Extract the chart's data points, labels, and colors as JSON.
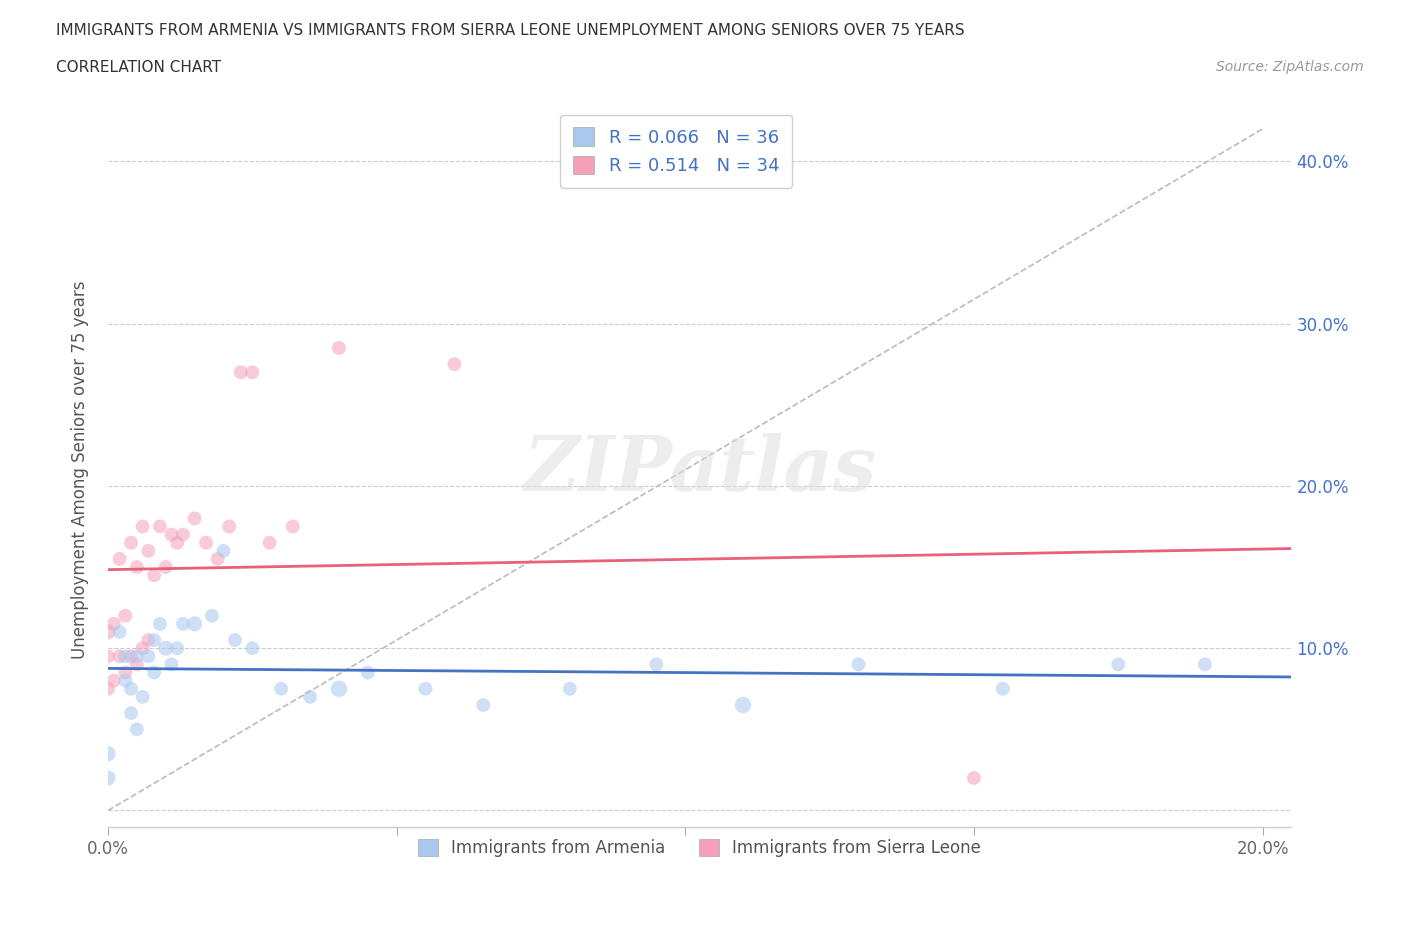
{
  "title_line1": "IMMIGRANTS FROM ARMENIA VS IMMIGRANTS FROM SIERRA LEONE UNEMPLOYMENT AMONG SENIORS OVER 75 YEARS",
  "title_line2": "CORRELATION CHART",
  "source": "Source: ZipAtlas.com",
  "ylabel": "Unemployment Among Seniors over 75 years",
  "xlim": [
    0.0,
    0.205
  ],
  "ylim": [
    -0.01,
    0.43
  ],
  "xticks": [
    0.0,
    0.05,
    0.1,
    0.15,
    0.2
  ],
  "yticks": [
    0.0,
    0.1,
    0.2,
    0.3,
    0.4
  ],
  "xticklabels": [
    "0.0%",
    "",
    "",
    "",
    "20.0%"
  ],
  "yticklabels_left": [
    "",
    "",
    "",
    "",
    ""
  ],
  "yticklabels_right": [
    "",
    "10.0%",
    "20.0%",
    "30.0%",
    "40.0%"
  ],
  "armenia_color": "#A8C8F0",
  "sierra_leone_color": "#F5A0B8",
  "armenia_line_color": "#4472C4",
  "sierra_leone_line_color": "#E8607A",
  "armenia_R": 0.066,
  "armenia_N": 36,
  "sierra_leone_R": 0.514,
  "sierra_leone_N": 34,
  "legend_color": "#4472C4",
  "watermark": "ZIPatlas",
  "armenia_x": [
    0.0,
    0.0,
    0.002,
    0.003,
    0.003,
    0.004,
    0.004,
    0.005,
    0.005,
    0.006,
    0.007,
    0.008,
    0.008,
    0.009,
    0.01,
    0.011,
    0.012,
    0.013,
    0.015,
    0.018,
    0.02,
    0.022,
    0.025,
    0.03,
    0.035,
    0.04,
    0.045,
    0.055,
    0.065,
    0.08,
    0.095,
    0.11,
    0.13,
    0.155,
    0.175,
    0.19
  ],
  "armenia_y": [
    0.035,
    0.02,
    0.11,
    0.095,
    0.08,
    0.075,
    0.06,
    0.095,
    0.05,
    0.07,
    0.095,
    0.105,
    0.085,
    0.115,
    0.1,
    0.09,
    0.1,
    0.115,
    0.115,
    0.12,
    0.16,
    0.105,
    0.1,
    0.075,
    0.07,
    0.075,
    0.085,
    0.075,
    0.065,
    0.075,
    0.09,
    0.065,
    0.09,
    0.075,
    0.09,
    0.09
  ],
  "armenia_sizes": [
    120,
    120,
    100,
    100,
    100,
    100,
    100,
    100,
    100,
    100,
    100,
    100,
    100,
    100,
    120,
    100,
    100,
    100,
    120,
    100,
    100,
    100,
    100,
    100,
    100,
    140,
    100,
    100,
    100,
    100,
    100,
    140,
    100,
    100,
    100,
    100
  ],
  "sierra_leone_x": [
    0.0,
    0.0,
    0.0,
    0.001,
    0.001,
    0.002,
    0.002,
    0.003,
    0.003,
    0.004,
    0.004,
    0.005,
    0.005,
    0.006,
    0.006,
    0.007,
    0.007,
    0.008,
    0.009,
    0.01,
    0.011,
    0.012,
    0.013,
    0.015,
    0.017,
    0.019,
    0.021,
    0.023,
    0.025,
    0.028,
    0.032,
    0.04,
    0.06,
    0.15
  ],
  "sierra_leone_y": [
    0.075,
    0.095,
    0.11,
    0.08,
    0.115,
    0.095,
    0.155,
    0.085,
    0.12,
    0.095,
    0.165,
    0.09,
    0.15,
    0.1,
    0.175,
    0.105,
    0.16,
    0.145,
    0.175,
    0.15,
    0.17,
    0.165,
    0.17,
    0.18,
    0.165,
    0.155,
    0.175,
    0.27,
    0.27,
    0.165,
    0.175,
    0.285,
    0.275,
    0.02
  ],
  "sierra_leone_sizes": [
    100,
    100,
    120,
    100,
    100,
    100,
    100,
    100,
    100,
    100,
    100,
    100,
    100,
    100,
    100,
    100,
    100,
    100,
    100,
    100,
    100,
    100,
    100,
    100,
    100,
    100,
    100,
    100,
    100,
    100,
    100,
    100,
    100,
    100
  ],
  "dashed_line_x": [
    0.0,
    0.2
  ],
  "dashed_line_y": [
    0.0,
    0.42
  ]
}
